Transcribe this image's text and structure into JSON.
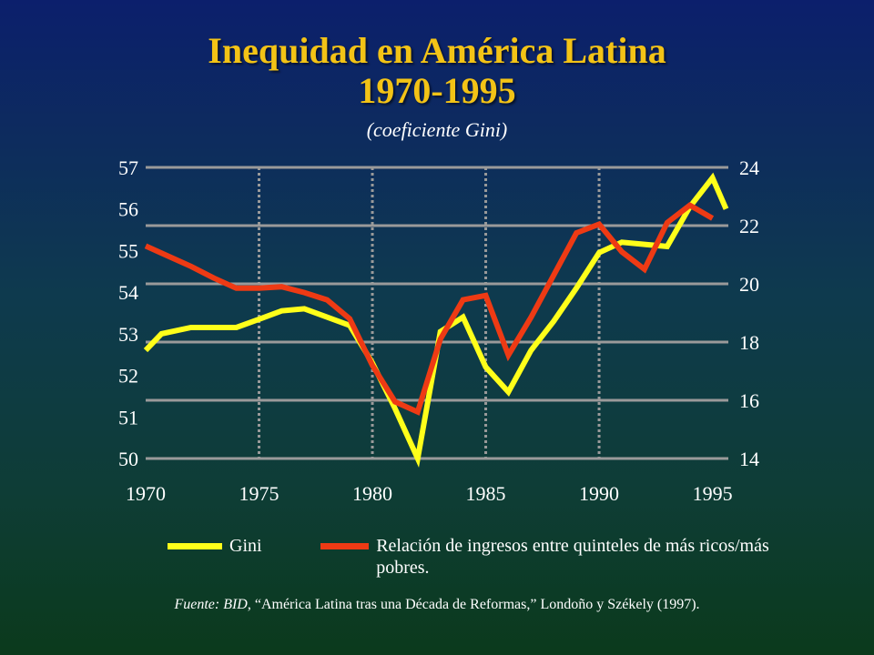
{
  "title_line1": "Inequidad en América Latina",
  "title_line2": "1970-1995",
  "subtitle": "(coeficiente Gini)",
  "legend": {
    "gini_label": "Gini",
    "ratio_label": "Relación de ingresos entre quinteles de más ricos/más pobres."
  },
  "source": {
    "prefix": "Fuente: BID",
    "text": ", “América Latina tras una Década de Reformas,” Londoño y Székely (1997)."
  },
  "colors": {
    "gini": "#ffff1a",
    "ratio": "#ee3a14",
    "title": "#f3c316",
    "grid": "#9a9a9a"
  },
  "chart_data": {
    "type": "line",
    "x_ticks": [
      "1970",
      "1975",
      "1980",
      "1985",
      "1990",
      "1995"
    ],
    "left_axis": {
      "ticks": [
        "57",
        "56",
        "55",
        "54",
        "53",
        "52",
        "51",
        "50"
      ],
      "ylim": [
        50,
        57
      ]
    },
    "right_axis": {
      "ticks": [
        "24",
        "22",
        "20",
        "18",
        "16",
        "14"
      ],
      "ylim": [
        14,
        24
      ]
    },
    "xlim": [
      1970,
      1995.7
    ],
    "grid": "horizontal solid at right-axis ticks; vertical dotted at 1975, 1980, 1985, 1990",
    "series": [
      {
        "name": "Gini",
        "axis": "left",
        "color": "#ffff1a",
        "points": [
          [
            1970,
            52.6
          ],
          [
            1970.7,
            53.0
          ],
          [
            1972,
            53.15
          ],
          [
            1974,
            53.15
          ],
          [
            1975,
            53.35
          ],
          [
            1976,
            53.55
          ],
          [
            1977,
            53.6
          ],
          [
            1978,
            53.4
          ],
          [
            1979,
            53.2
          ],
          [
            1980,
            52.3
          ],
          [
            1981,
            51.2
          ],
          [
            1982,
            50.0
          ],
          [
            1983,
            53.05
          ],
          [
            1984,
            53.4
          ],
          [
            1985,
            52.2
          ],
          [
            1986,
            51.6
          ],
          [
            1987,
            52.6
          ],
          [
            1988,
            53.3
          ],
          [
            1989,
            54.1
          ],
          [
            1990,
            54.95
          ],
          [
            1991,
            55.2
          ],
          [
            1992,
            55.15
          ],
          [
            1993,
            55.1
          ],
          [
            1994,
            56.05
          ],
          [
            1995,
            56.75
          ],
          [
            1995.6,
            56.0
          ]
        ]
      },
      {
        "name": "Relación de ingresos entre quinteles de más ricos/más pobres.",
        "axis": "right",
        "color": "#ee3a14",
        "points": [
          [
            1970,
            21.3
          ],
          [
            1971,
            20.95
          ],
          [
            1972,
            20.6
          ],
          [
            1973,
            20.2
          ],
          [
            1974,
            19.85
          ],
          [
            1975,
            19.85
          ],
          [
            1976,
            19.9
          ],
          [
            1977,
            19.7
          ],
          [
            1978,
            19.45
          ],
          [
            1979,
            18.8
          ],
          [
            1980,
            17.2
          ],
          [
            1981,
            15.95
          ],
          [
            1982,
            15.6
          ],
          [
            1983,
            18.1
          ],
          [
            1984,
            19.45
          ],
          [
            1985,
            19.6
          ],
          [
            1986,
            17.55
          ],
          [
            1987,
            18.85
          ],
          [
            1988,
            20.3
          ],
          [
            1989,
            21.75
          ],
          [
            1990,
            22.05
          ],
          [
            1991,
            21.1
          ],
          [
            1992,
            20.5
          ],
          [
            1993,
            22.1
          ],
          [
            1994,
            22.7
          ],
          [
            1995,
            22.25
          ]
        ]
      }
    ]
  }
}
